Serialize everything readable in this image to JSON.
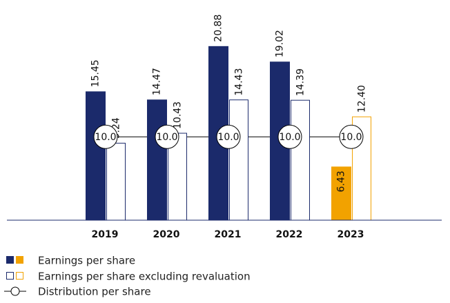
{
  "chart_data": {
    "type": "bar",
    "categories": [
      "2019",
      "2020",
      "2021",
      "2022",
      "2023"
    ],
    "category_colors": [
      "#1b2a6b",
      "#1b2a6b",
      "#1b2a6b",
      "#1b2a6b",
      "#f2a200"
    ],
    "series": [
      {
        "name": "Earnings per share",
        "style": "filled",
        "colors": [
          "#1b2a6b",
          "#1b2a6b",
          "#1b2a6b",
          "#1b2a6b",
          "#f2a200"
        ],
        "values": [
          15.45,
          14.47,
          20.88,
          19.02,
          6.43
        ],
        "value_labels": [
          "15.45",
          "14.47",
          "20.88",
          "19.02",
          "6.43"
        ]
      },
      {
        "name": "Earnings per share excluding revaluation",
        "style": "outline",
        "colors": [
          "#1b2a6b",
          "#1b2a6b",
          "#1b2a6b",
          "#1b2a6b",
          "#f2a200"
        ],
        "values": [
          9.24,
          10.43,
          14.43,
          14.39,
          12.4
        ],
        "value_labels": [
          "9.24",
          "10.43",
          "14.43",
          "14.39",
          "12.40"
        ]
      },
      {
        "name": "Distribution per share",
        "style": "line-marker",
        "color": "#000000",
        "values": [
          10.0,
          10.0,
          10.0,
          10.0,
          10.0
        ],
        "value_labels": [
          "10.0",
          "10.0",
          "10.0",
          "10.0",
          "10.0"
        ]
      }
    ],
    "ylim": [
      0,
      26
    ]
  }
}
